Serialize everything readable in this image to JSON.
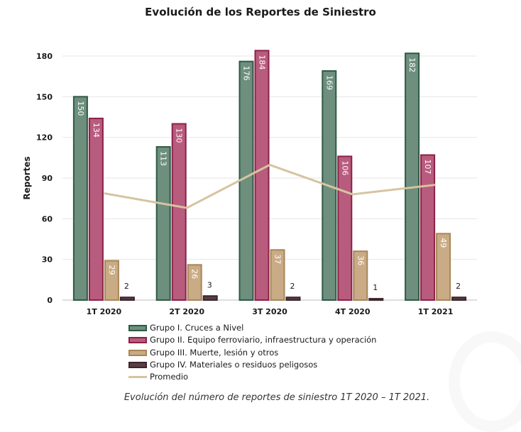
{
  "title": "Evolución de los Reportes de Siniestro",
  "caption": "Evolución del número de reportes de siniestro 1T 2020 – 1T 2021.",
  "colors": {
    "g1_fill": "#6e8f7e",
    "g1_stroke": "#2e5a44",
    "g2_fill": "#b85c7e",
    "g2_stroke": "#8c2048",
    "g3_fill": "#c9ab85",
    "g3_stroke": "#a88658",
    "g4_fill": "#5a3e45",
    "g4_stroke": "#3b252b",
    "avg": "#d6c4a0"
  },
  "legend": [
    {
      "label": "Grupo I. Cruces a Nivel",
      "kind": "box",
      "color": "g1"
    },
    {
      "label": "Grupo II. Equipo ferroviario, infraestructura y operación",
      "kind": "box",
      "color": "g2"
    },
    {
      "label": "Grupo III. Muerte, lesión y otros",
      "kind": "box",
      "color": "g3"
    },
    {
      "label": "Grupo IV. Materiales o residuos peligosos",
      "kind": "box",
      "color": "g4"
    },
    {
      "label": "Promedio",
      "kind": "line",
      "color": "avg"
    }
  ],
  "chart_data": {
    "type": "bar",
    "title": "Evolución de los Reportes de Siniestro",
    "ylabel": "Reportes",
    "xlabel": "",
    "ylim": [
      0,
      180
    ],
    "yticks": [
      0,
      30,
      60,
      90,
      120,
      150,
      180
    ],
    "grid": true,
    "legend_position": "bottom",
    "categories": [
      "1T 2020",
      "2T 2020",
      "3T 2020",
      "4T 2020",
      "1T 2021"
    ],
    "series": [
      {
        "name": "Grupo I. Cruces a Nivel",
        "values": [
          150,
          113,
          176,
          169,
          182
        ]
      },
      {
        "name": "Grupo II. Equipo ferroviario, infraestructura y operación",
        "values": [
          134,
          130,
          184,
          106,
          107
        ]
      },
      {
        "name": "Grupo III. Muerte, lesión y otros",
        "values": [
          29,
          26,
          37,
          36,
          49
        ]
      },
      {
        "name": "Grupo IV. Materiales o residuos peligosos",
        "values": [
          2,
          3,
          2,
          1,
          2
        ]
      }
    ],
    "line_series": {
      "name": "Promedio",
      "values": [
        78.75,
        68,
        99.75,
        78,
        85
      ]
    }
  }
}
